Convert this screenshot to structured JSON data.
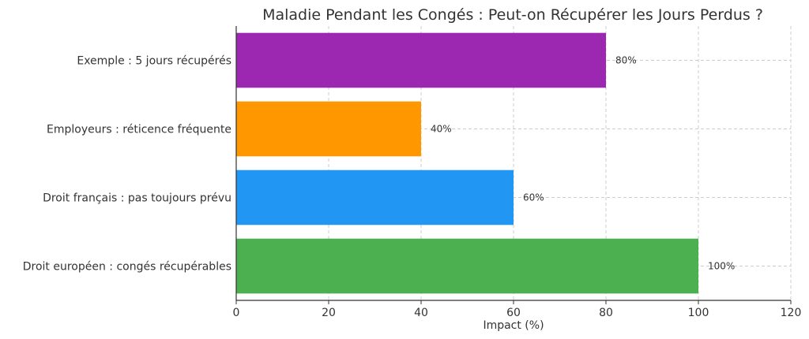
{
  "chart_data": {
    "type": "bar",
    "orientation": "horizontal",
    "title": "Maladie Pendant les Congés : Peut-on Récupérer les Jours Perdus ?",
    "xlabel": "Impact (%)",
    "ylabel": "",
    "xlim": [
      0,
      120
    ],
    "xticks": [
      0,
      20,
      40,
      60,
      80,
      100,
      120
    ],
    "grid": true,
    "categories": [
      "Droit européen : congés récupérables",
      "Droit français : pas toujours prévu",
      "Employeurs : réticence fréquente",
      "Exemple : 5 jours récupérés"
    ],
    "values": [
      100,
      60,
      40,
      80
    ],
    "value_labels": [
      "100%",
      "60%",
      "40%",
      "80%"
    ],
    "colors": [
      "#4caf50",
      "#2196f3",
      "#ff9800",
      "#9c27b0"
    ]
  }
}
